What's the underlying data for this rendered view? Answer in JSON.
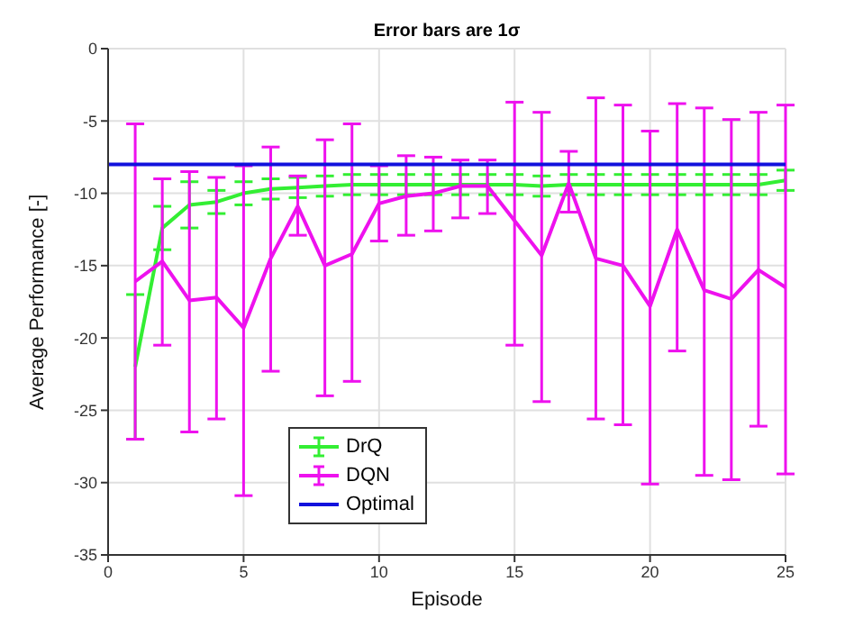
{
  "chart_data": {
    "type": "line",
    "title": "Error bars are 1σ",
    "xlabel": "Episode",
    "ylabel": "Average Performance [-]",
    "x": [
      1,
      2,
      3,
      4,
      5,
      6,
      7,
      8,
      9,
      10,
      11,
      12,
      13,
      14,
      15,
      16,
      17,
      18,
      19,
      20,
      21,
      22,
      23,
      24,
      25
    ],
    "series": [
      {
        "name": "DrQ",
        "color": "#33ee33",
        "values": [
          -22,
          -12.4,
          -10.8,
          -10.6,
          -10.0,
          -9.7,
          -9.6,
          -9.5,
          -9.4,
          -9.4,
          -9.4,
          -9.4,
          -9.4,
          -9.4,
          -9.4,
          -9.5,
          -9.4,
          -9.4,
          -9.4,
          -9.4,
          -9.4,
          -9.4,
          -9.4,
          -9.4,
          -9.1
        ],
        "errors": [
          5,
          1.5,
          1.6,
          0.8,
          0.8,
          0.7,
          0.7,
          0.7,
          0.7,
          0.7,
          0.7,
          0.7,
          0.7,
          0.7,
          0.7,
          0.7,
          0.7,
          0.7,
          0.7,
          0.7,
          0.7,
          0.7,
          0.7,
          0.7,
          0.7
        ]
      },
      {
        "name": "DQN",
        "color": "#ee11ee",
        "values": [
          -16.1,
          -14.7,
          -17.4,
          -17.2,
          -19.3,
          -14.5,
          -10.9,
          -15.0,
          -14.2,
          -10.7,
          -10.2,
          -10.0,
          -9.5,
          -9.5,
          -11.9,
          -14.3,
          -9.3,
          -14.5,
          -15.0,
          -17.8,
          -12.5,
          -16.7,
          -17.3,
          -15.3,
          -16.5
        ],
        "errors": [
          [
            -27.0,
            -5.2
          ],
          [
            -20.5,
            -9.0
          ],
          [
            -26.5,
            -8.5
          ],
          [
            -25.6,
            -8.9
          ],
          [
            -30.9,
            -8.1
          ],
          [
            -22.3,
            -6.8
          ],
          [
            -12.9,
            -8.8
          ],
          [
            -24.0,
            -6.3
          ],
          [
            -23.0,
            -5.2
          ],
          [
            -13.3,
            -8.1
          ],
          [
            -12.9,
            -7.4
          ],
          [
            -12.6,
            -7.5
          ],
          [
            -11.7,
            -7.7
          ],
          [
            -11.4,
            -7.7
          ],
          [
            -20.5,
            -3.7
          ],
          [
            -24.4,
            -4.4
          ],
          [
            -11.3,
            -7.1
          ],
          [
            -25.6,
            -3.4
          ],
          [
            -26.0,
            -3.9
          ],
          [
            -30.1,
            -5.7
          ],
          [
            -20.9,
            -3.8
          ],
          [
            -29.5,
            -4.1
          ],
          [
            -29.8,
            -4.9
          ],
          [
            -26.1,
            -4.4
          ],
          [
            -29.4,
            -3.9
          ]
        ]
      },
      {
        "name": "Optimal",
        "color": "#1111dd",
        "x": [
          0,
          25
        ],
        "values": [
          -8,
          -8
        ]
      }
    ],
    "xlim": [
      0,
      25
    ],
    "xticks": [
      0,
      5,
      10,
      15,
      20,
      25
    ],
    "ylim": [
      -35,
      0
    ],
    "yticks": [
      -35,
      -30,
      -25,
      -20,
      -15,
      -10,
      -5,
      0
    ],
    "grid": true,
    "legend": "bottom left",
    "marker": "none",
    "line_style": "solid"
  }
}
